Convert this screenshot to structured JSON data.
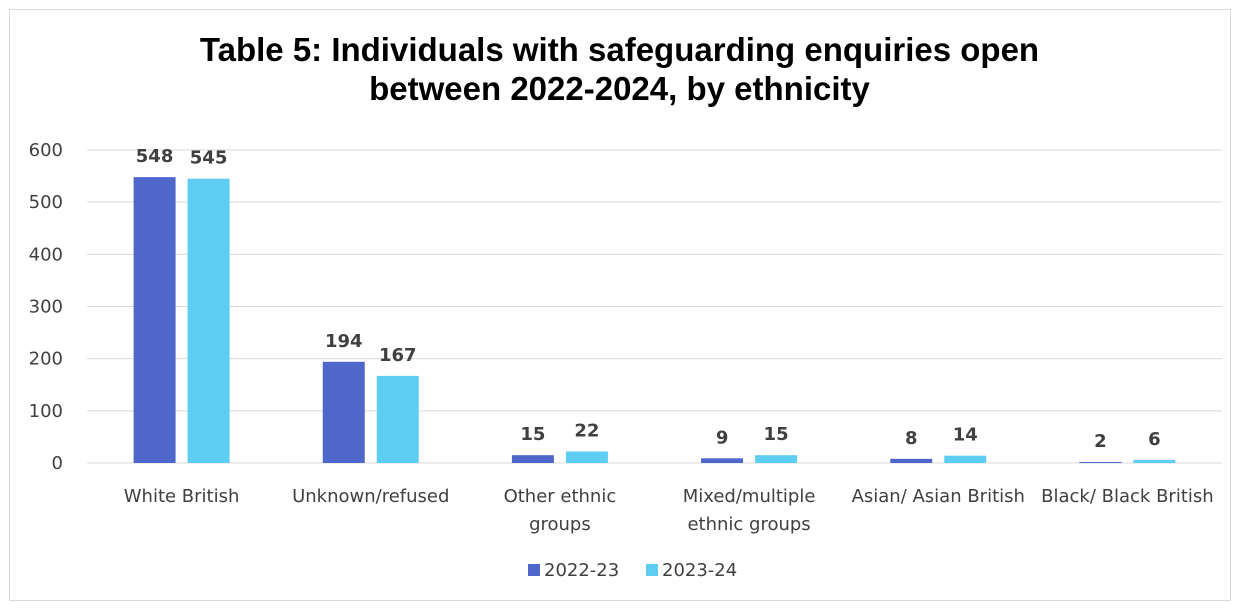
{
  "chart_data": {
    "type": "bar",
    "title_lines": [
      "Table 5: Individuals with safeguarding enquiries open",
      "between 2022-2024, by ethnicity"
    ],
    "categories": [
      [
        "White British"
      ],
      [
        "Unknown/refused"
      ],
      [
        "Other ethnic",
        "groups"
      ],
      [
        "Mixed/multiple",
        "ethnic groups"
      ],
      [
        "Asian/ Asian British"
      ],
      [
        "Black/ Black British"
      ]
    ],
    "series": [
      {
        "name": "2022-23",
        "values": [
          548,
          194,
          15,
          9,
          8,
          2
        ],
        "color": "#4f67cb"
      },
      {
        "name": "2023-24",
        "values": [
          545,
          167,
          22,
          15,
          14,
          6
        ],
        "color": "#5ecdf2"
      }
    ],
    "ylim": [
      0,
      600
    ],
    "yticks": [
      "0",
      "100",
      "200",
      "300",
      "400",
      "500",
      "600"
    ],
    "xlabel": "",
    "ylabel": "",
    "grid": true,
    "legend_position": "bottom",
    "data_labels": true
  }
}
